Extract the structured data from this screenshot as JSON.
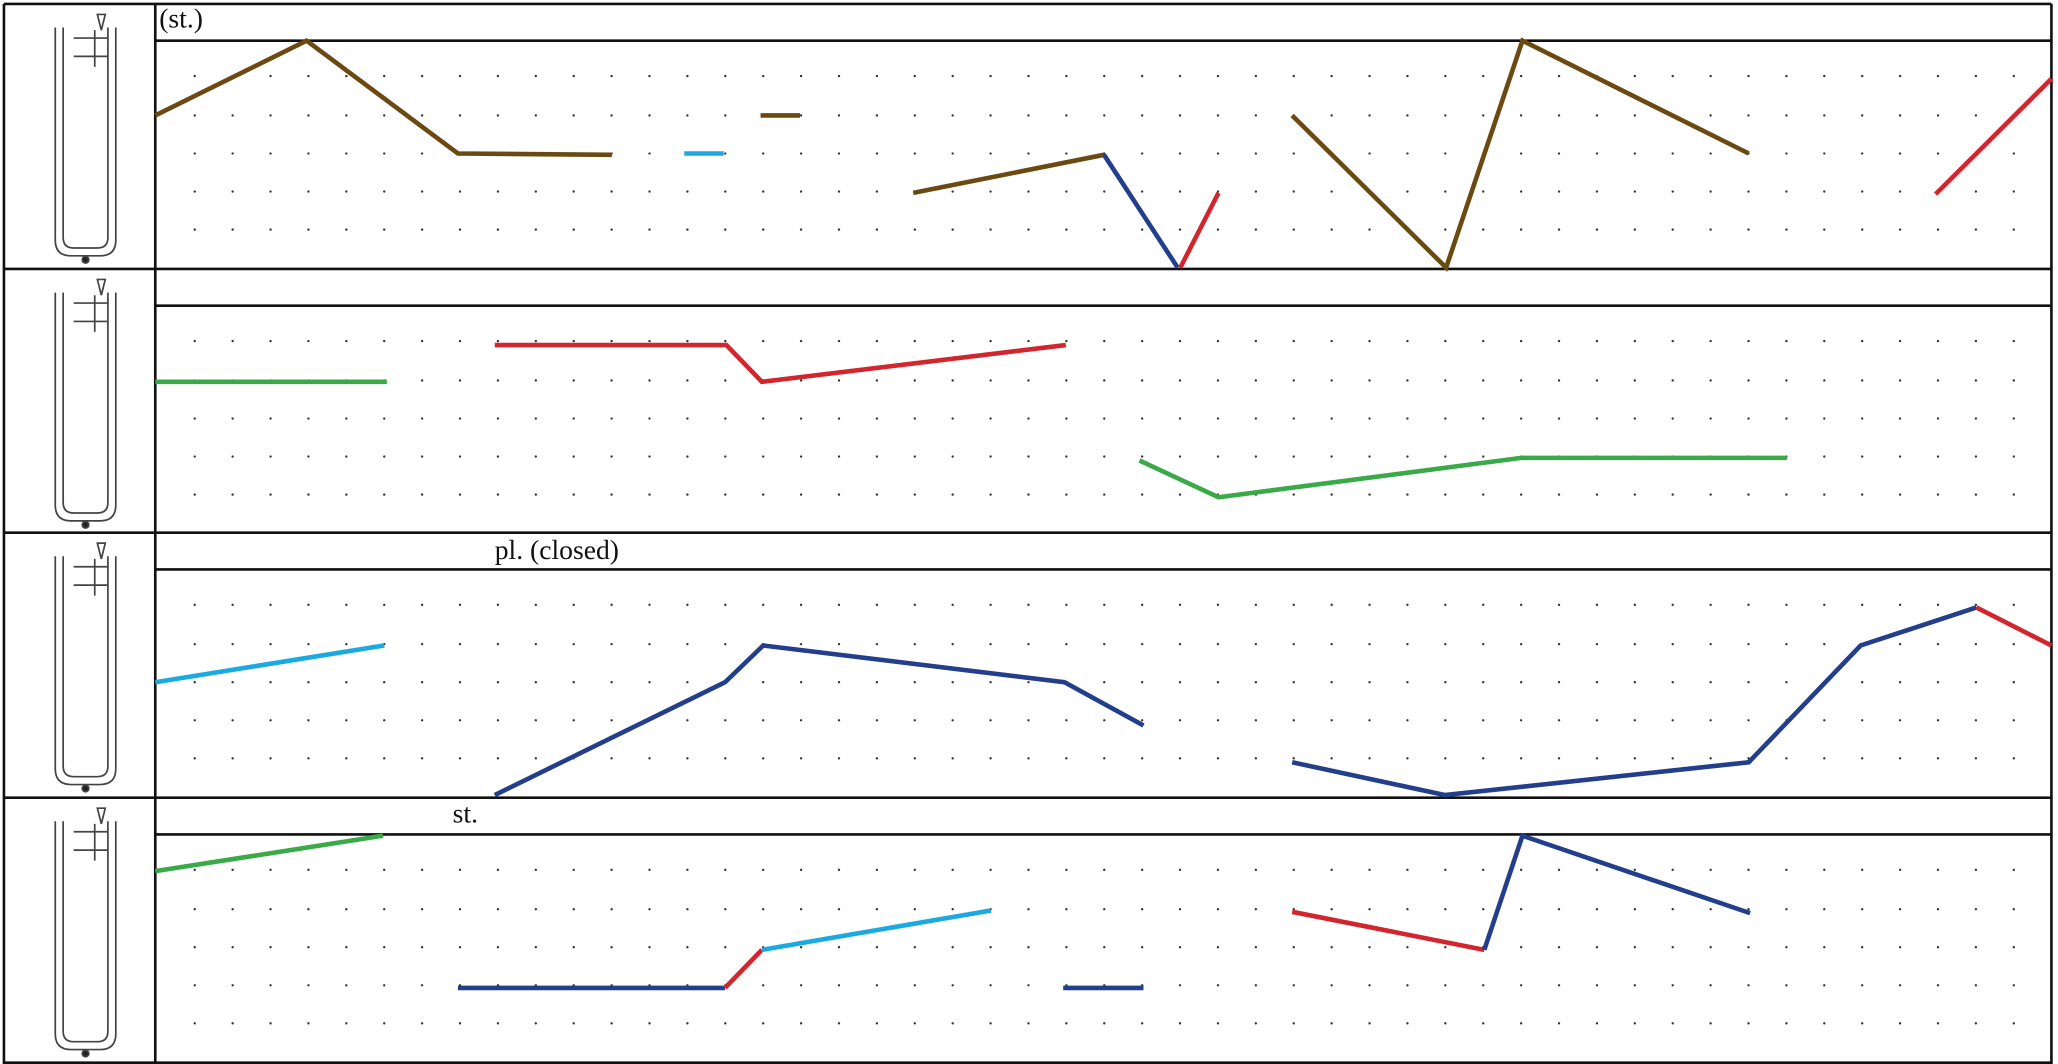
{
  "staves": {
    "annotations": [
      "(st.)",
      "pl. (closed)",
      "st."
    ]
  }
}
